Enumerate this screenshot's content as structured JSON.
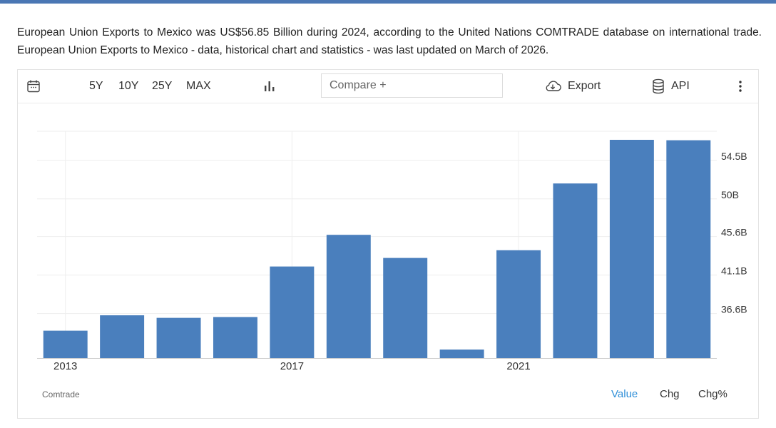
{
  "description": "European Union Exports to Mexico was US$56.85 Billion during 2024, according to the United Nations COMTRADE database on international trade. European Union Exports to Mexico - data, historical chart and statistics - was last updated on March of 2026.",
  "toolbar": {
    "ranges": [
      "5Y",
      "10Y",
      "25Y",
      "MAX"
    ],
    "compare_placeholder": "Compare +",
    "export_label": "Export",
    "api_label": "API"
  },
  "footer": {
    "source": "Comtrade",
    "modes": [
      "Value",
      "Chg",
      "Chg%"
    ],
    "active_mode": "Value"
  },
  "colors": {
    "bar": "#4a7fbd",
    "accent": "#2f8fd8",
    "topbar": "#4a77b4"
  },
  "chart_data": {
    "type": "bar",
    "x": [
      2013,
      2014,
      2015,
      2016,
      2017,
      2018,
      2019,
      2020,
      2021,
      2022,
      2023,
      2024
    ],
    "values": [
      34.6,
      36.4,
      36.1,
      36.2,
      42.1,
      45.8,
      43.1,
      32.4,
      44.0,
      51.8,
      56.9,
      56.85
    ],
    "x_tick_labels": [
      "2013",
      "2017",
      "2021"
    ],
    "y_tick_labels": [
      "36.6B",
      "41.1B",
      "45.6B",
      "50B",
      "54.5B"
    ],
    "y_ticks": [
      36.6,
      41.1,
      45.6,
      50.0,
      54.5
    ],
    "ylim": [
      31.4,
      57.9
    ],
    "y_axis_side": "right",
    "grid": true
  }
}
